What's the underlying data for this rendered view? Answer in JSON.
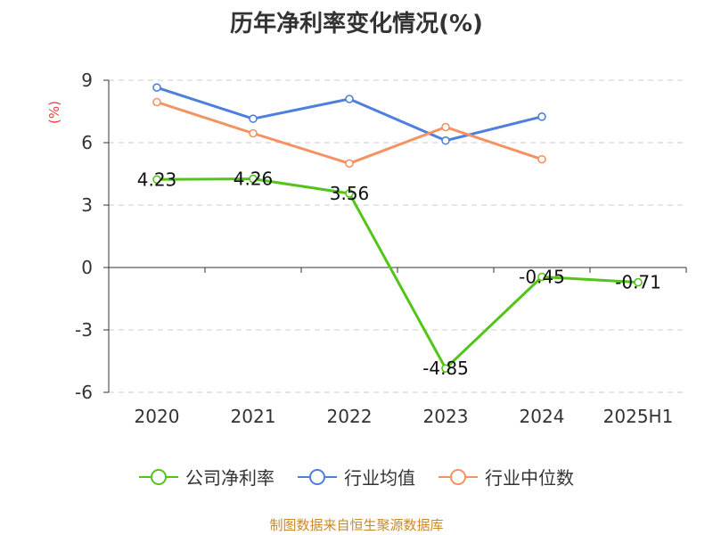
{
  "chart_data": {
    "type": "line",
    "title": "历年净利率变化情况(%)",
    "ylabel": "(%)",
    "xlabel": "",
    "categories": [
      "2020",
      "2021",
      "2022",
      "2023",
      "2024",
      "2025H1"
    ],
    "ylim": [
      -6,
      9
    ],
    "yticks": [
      9,
      6,
      3,
      0,
      -3,
      -6
    ],
    "ytick_labels": [
      "9",
      "6",
      "3",
      "0",
      "-3",
      "-6"
    ],
    "grid": "horizontal-dashed",
    "legend_position": "bottom",
    "series": [
      {
        "name": "公司净利率",
        "color": "#52c41a",
        "values": [
          4.23,
          4.26,
          3.56,
          -4.85,
          -0.45,
          -0.71
        ],
        "labels": [
          "4.23",
          "4.26",
          "3.56",
          "-4.85",
          "-0.45",
          "-0.71"
        ]
      },
      {
        "name": "行业均值",
        "color": "#4e7fde",
        "values": [
          8.65,
          7.15,
          8.1,
          6.1,
          7.25,
          null
        ]
      },
      {
        "name": "行业中位数",
        "color": "#f59262",
        "values": [
          7.95,
          6.45,
          5.0,
          6.75,
          5.2,
          null
        ]
      }
    ]
  },
  "footer": {
    "source": "制图数据来自恒生聚源数据库",
    "source_color": "#c98a2b"
  },
  "colors": {
    "ylabel": "#e8413c",
    "axis": "#333333",
    "grid": "#cccccc"
  }
}
